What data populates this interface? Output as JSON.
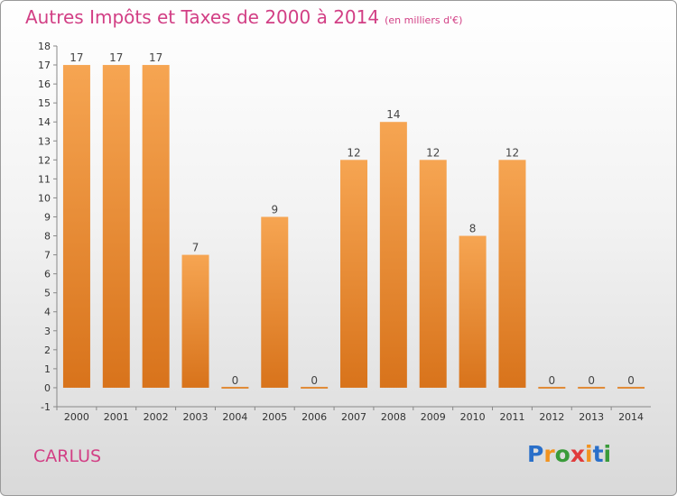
{
  "title": "Autres Impôts et Taxes de 2000 à 2014",
  "unit": "(en milliers d'€)",
  "city": "CARLUS",
  "logo": {
    "letters": [
      "P",
      "r",
      "o",
      "x",
      "i",
      "t",
      "i"
    ],
    "colors": [
      "#2a6fc9",
      "#f2931f",
      "#3a9b3a",
      "#e03b3b",
      "#f2931f",
      "#2a6fc9",
      "#3a9b3a"
    ]
  },
  "colors": {
    "title": "#d23f85",
    "bar_light": "#f6a552",
    "bar_dark": "#d8731b"
  },
  "chart_data": {
    "type": "bar",
    "categories": [
      "2000",
      "2001",
      "2002",
      "2003",
      "2004",
      "2005",
      "2006",
      "2007",
      "2008",
      "2009",
      "2010",
      "2011",
      "2012",
      "2013",
      "2014"
    ],
    "values": [
      17,
      17,
      17,
      7,
      0,
      9,
      0,
      12,
      14,
      12,
      8,
      12,
      0,
      0,
      0
    ],
    "yticks": [
      -1,
      0,
      1,
      2,
      3,
      4,
      5,
      6,
      7,
      8,
      9,
      10,
      11,
      12,
      13,
      14,
      15,
      16,
      17,
      18
    ],
    "ylim": [
      -1,
      18
    ],
    "grid": false,
    "legend": "none"
  }
}
